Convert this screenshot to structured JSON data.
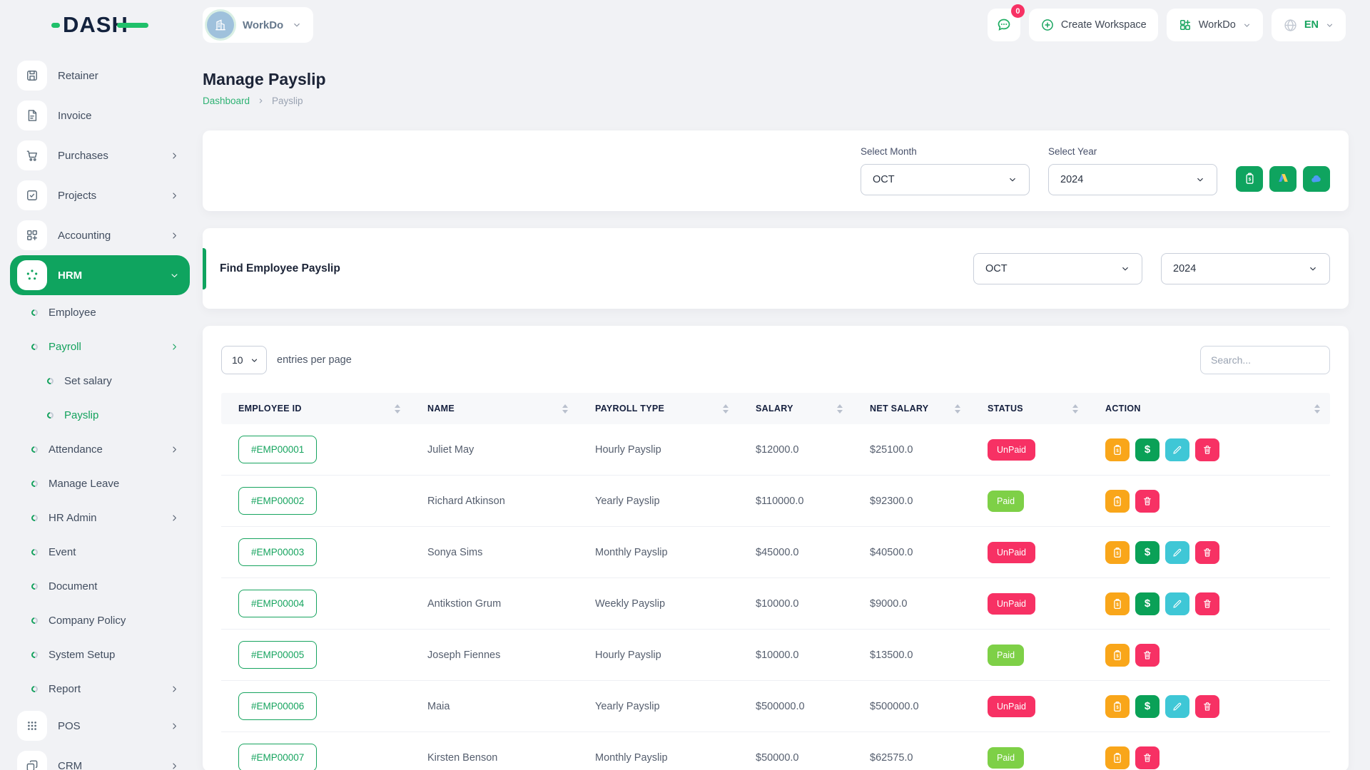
{
  "topbar": {
    "logo_text": "DASH",
    "workspace_label": "WorkDo",
    "messages_badge": "0",
    "create_workspace_label": "Create Workspace",
    "app_switcher_label": "WorkDo",
    "language_code": "EN"
  },
  "sidebar": {
    "items": [
      {
        "label": "Retainer",
        "icon": "floppy",
        "level": 1
      },
      {
        "label": "Invoice",
        "icon": "invoice",
        "level": 1
      },
      {
        "label": "Purchases",
        "icon": "cart",
        "level": 1,
        "chevron": "right"
      },
      {
        "label": "Projects",
        "icon": "check-square",
        "level": 1,
        "chevron": "right"
      },
      {
        "label": "Accounting",
        "icon": "grid-plus",
        "level": 1,
        "chevron": "right"
      },
      {
        "label": "HRM",
        "icon": "hrm",
        "level": 1,
        "chevron": "down",
        "active": true
      },
      {
        "label": "Employee",
        "level": 2
      },
      {
        "label": "Payroll",
        "level": 2,
        "chevron": "right",
        "active": true
      },
      {
        "label": "Set salary",
        "level": 3
      },
      {
        "label": "Payslip",
        "level": 3,
        "active": true
      },
      {
        "label": "Attendance",
        "level": 2,
        "chevron": "right"
      },
      {
        "label": "Manage Leave",
        "level": 2
      },
      {
        "label": "HR Admin",
        "level": 2,
        "chevron": "right"
      },
      {
        "label": "Event",
        "level": 2
      },
      {
        "label": "Document",
        "level": 2
      },
      {
        "label": "Company Policy",
        "level": 2
      },
      {
        "label": "System Setup",
        "level": 2
      },
      {
        "label": "Report",
        "level": 2,
        "chevron": "right"
      },
      {
        "label": "POS",
        "icon": "pos",
        "level": 1,
        "chevron": "right"
      },
      {
        "label": "CRM",
        "icon": "crm",
        "level": 1,
        "chevron": "right"
      }
    ]
  },
  "page": {
    "title": "Manage Payslip",
    "breadcrumb_home": "Dashboard",
    "breadcrumb_current": "Payslip"
  },
  "filters": {
    "month_label": "Select Month",
    "month_value": "OCT",
    "year_label": "Select Year",
    "year_value": "2024",
    "action_icons": [
      "bulk-payslip",
      "drive-export",
      "cloud-export"
    ]
  },
  "find_payslip": {
    "title": "Find Employee Payslip",
    "month_value": "OCT",
    "year_value": "2024"
  },
  "table": {
    "page_size": "10",
    "entries_label": "entries per page",
    "search_placeholder": "Search...",
    "columns": [
      "EMPLOYEE ID",
      "NAME",
      "PAYROLL TYPE",
      "SALARY",
      "NET SALARY",
      "STATUS",
      "ACTION"
    ],
    "rows": [
      {
        "id": "#EMP00001",
        "name": "Juliet May",
        "payroll_type": "Hourly Payslip",
        "salary": "$12000.0",
        "net_salary": "$25100.0",
        "status": "UnPaid",
        "actions": [
          "payslip",
          "pay",
          "edit",
          "delete"
        ]
      },
      {
        "id": "#EMP00002",
        "name": "Richard Atkinson",
        "payroll_type": "Yearly Payslip",
        "salary": "$110000.0",
        "net_salary": "$92300.0",
        "status": "Paid",
        "actions": [
          "payslip",
          "delete"
        ]
      },
      {
        "id": "#EMP00003",
        "name": "Sonya Sims",
        "payroll_type": "Monthly Payslip",
        "salary": "$45000.0",
        "net_salary": "$40500.0",
        "status": "UnPaid",
        "actions": [
          "payslip",
          "pay",
          "edit",
          "delete"
        ]
      },
      {
        "id": "#EMP00004",
        "name": "Antikstion Grum",
        "payroll_type": "Weekly Payslip",
        "salary": "$10000.0",
        "net_salary": "$9000.0",
        "status": "UnPaid",
        "actions": [
          "payslip",
          "pay",
          "edit",
          "delete"
        ]
      },
      {
        "id": "#EMP00005",
        "name": "Joseph Fiennes",
        "payroll_type": "Hourly Payslip",
        "salary": "$10000.0",
        "net_salary": "$13500.0",
        "status": "Paid",
        "actions": [
          "payslip",
          "delete"
        ]
      },
      {
        "id": "#EMP00006",
        "name": "Maia",
        "payroll_type": "Yearly Payslip",
        "salary": "$500000.0",
        "net_salary": "$500000.0",
        "status": "UnPaid",
        "actions": [
          "payslip",
          "pay",
          "edit",
          "delete"
        ]
      },
      {
        "id": "#EMP00007",
        "name": "Kirsten Benson",
        "payroll_type": "Monthly Payslip",
        "salary": "$50000.0",
        "net_salary": "$62575.0",
        "status": "Paid",
        "actions": [
          "payslip",
          "delete"
        ]
      }
    ]
  },
  "colors": {
    "primary_green": "#0fa45f",
    "status_paid": "#7ed047",
    "status_unpaid": "#f73164",
    "action_payslip": "#f9a61a",
    "action_pay": "#0aa157",
    "action_edit": "#3fc7d6",
    "action_delete": "#f73164"
  }
}
